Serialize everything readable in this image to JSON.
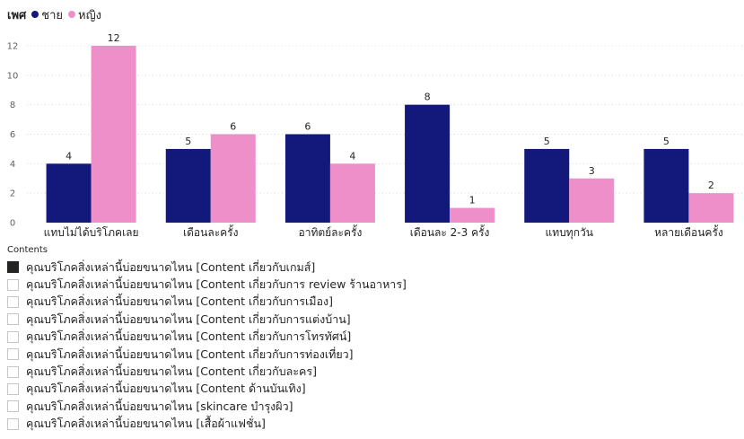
{
  "colors": {
    "male": "#12197a",
    "female": "#ee8fca",
    "grid": "#d8d8d8"
  },
  "legend": {
    "title": "เพศ",
    "items": [
      {
        "label": "ชาย",
        "color": "#12197a"
      },
      {
        "label": "หญิง",
        "color": "#ee8fca"
      }
    ]
  },
  "chart_data": {
    "type": "bar",
    "categories": [
      "แทบไม่ได้บริโภคเลย",
      "เดือนละครั้ง",
      "อาทิตย์ละครั้ง",
      "เดือนละ 2-3 ครั้ง",
      "แทบทุกวัน",
      "หลายเดือนครั้ง"
    ],
    "series": [
      {
        "name": "ชาย",
        "values": [
          4,
          5,
          6,
          8,
          5,
          5
        ]
      },
      {
        "name": "หญิง",
        "values": [
          12,
          6,
          4,
          1,
          3,
          2
        ]
      }
    ],
    "yticks": [
      0,
      2,
      4,
      6,
      8,
      10,
      12
    ],
    "ylim": [
      0,
      12
    ],
    "grid": true,
    "legend_position": "top-left"
  },
  "slicer": {
    "title": "Contents",
    "items": [
      {
        "label": "คุณบริโภคสิ่งเหล่านี้บ่อยขนาดไหน [Content เกี่ยวกับเกมส์]",
        "checked": true
      },
      {
        "label": "คุณบริโภคสิ่งเหล่านี้บ่อยขนาดไหน [Content เกี่ยวกับการ review ร้านอาหาร]",
        "checked": false
      },
      {
        "label": "คุณบริโภคสิ่งเหล่านี้บ่อยขนาดไหน [Content เกี่ยวกับการเมือง]",
        "checked": false
      },
      {
        "label": "คุณบริโภคสิ่งเหล่านี้บ่อยขนาดไหน [Content เกี่ยวกับการแต่งบ้าน]",
        "checked": false
      },
      {
        "label": "คุณบริโภคสิ่งเหล่านี้บ่อยขนาดไหน [Content เกี่ยวกับการโทรทัศน์]",
        "checked": false
      },
      {
        "label": "คุณบริโภคสิ่งเหล่านี้บ่อยขนาดไหน [Content เกี่ยวกับการท่องเที่ยว]",
        "checked": false
      },
      {
        "label": "คุณบริโภคสิ่งเหล่านี้บ่อยขนาดไหน [Content เกี่ยวกับละคร]",
        "checked": false
      },
      {
        "label": "คุณบริโภคสิ่งเหล่านี้บ่อยขนาดไหน [Content ด้านบันเทิง]",
        "checked": false
      },
      {
        "label": "คุณบริโภคสิ่งเหล่านี้บ่อยขนาดไหน [skincare บำรุงผิว]",
        "checked": false
      },
      {
        "label": "คุณบริโภคสิ่งเหล่านี้บ่อยขนาดไหน [เสื้อผ้าแฟชั่น]",
        "checked": false
      }
    ]
  }
}
